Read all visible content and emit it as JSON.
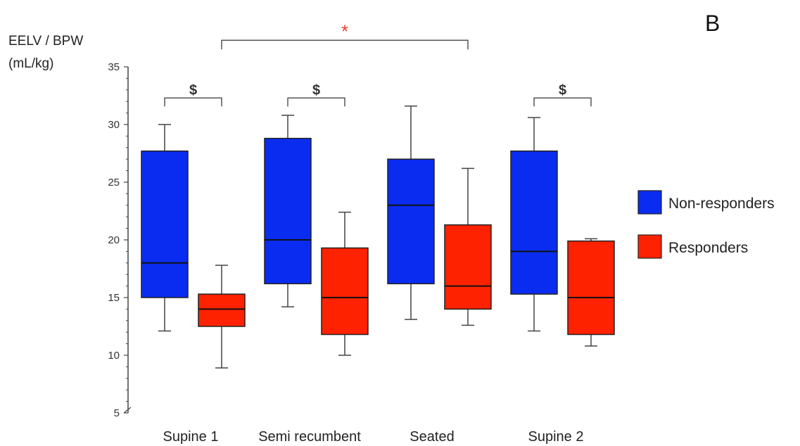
{
  "panel_label": "B",
  "colors": {
    "non_responders": "#0a2cf0",
    "responders": "#ff2200",
    "axis": "#444444",
    "star": "#e8432a"
  },
  "chart_data": {
    "type": "boxplot",
    "title": "",
    "ylabel": [
      "EELV / BPW",
      "(mL/kg)"
    ],
    "xlabel": "",
    "ylim": [
      5,
      35
    ],
    "yticks": [
      5,
      10,
      15,
      20,
      25,
      30,
      35
    ],
    "grid": false,
    "legend_position": "right",
    "categories": [
      "Supine 1",
      "Semi recumbent",
      "Seated",
      "Supine 2"
    ],
    "series": [
      {
        "name": "Non-responders",
        "color": "#0a2cf0",
        "boxes": [
          {
            "min": 12.1,
            "q1": 15.0,
            "median": 18.0,
            "q3": 27.7,
            "max": 30.0
          },
          {
            "min": 14.2,
            "q1": 16.2,
            "median": 20.0,
            "q3": 28.8,
            "max": 30.8
          },
          {
            "min": 13.1,
            "q1": 16.2,
            "median": 23.0,
            "q3": 27.0,
            "max": 31.6
          },
          {
            "min": 12.1,
            "q1": 15.3,
            "median": 19.0,
            "q3": 27.7,
            "max": 30.6
          }
        ]
      },
      {
        "name": "Responders",
        "color": "#ff2200",
        "boxes": [
          {
            "min": 8.9,
            "q1": 12.5,
            "median": 14.0,
            "q3": 15.3,
            "max": 17.8
          },
          {
            "min": 10.0,
            "q1": 11.8,
            "median": 15.0,
            "q3": 19.3,
            "max": 22.4
          },
          {
            "min": 12.6,
            "q1": 14.0,
            "median": 16.0,
            "q3": 21.3,
            "max": 26.2
          },
          {
            "min": 10.8,
            "q1": 11.8,
            "median": 15.0,
            "q3": 19.9,
            "max": 20.1
          }
        ]
      }
    ],
    "annotations": [
      {
        "symbol": "$",
        "category": "Supine 1",
        "level": 32.3
      },
      {
        "symbol": "$",
        "category": "Semi recumbent",
        "level": 32.3
      },
      {
        "symbol": "$",
        "category": "Supine 2",
        "level": 32.3
      },
      {
        "symbol": "*",
        "from_category": "Supine 1",
        "to_category": "Seated",
        "level": 37.3
      }
    ]
  }
}
